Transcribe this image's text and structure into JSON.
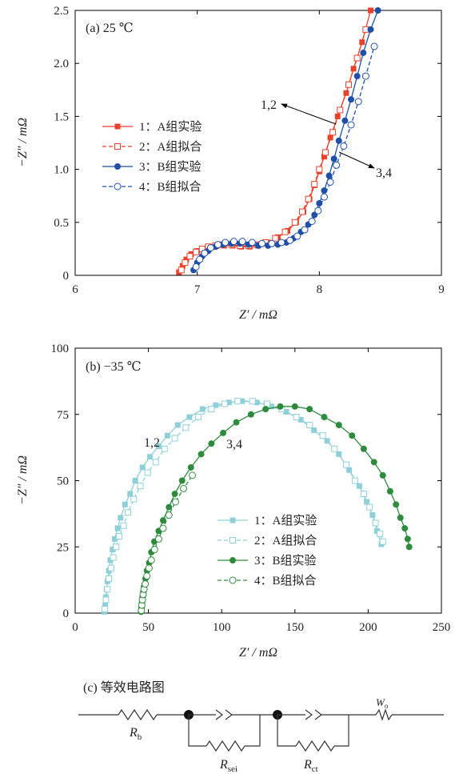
{
  "chart_data": [
    {
      "type": "line",
      "title": "(a) 25 ℃",
      "xlabel": "Z′ / mΩ",
      "ylabel": "−Z″ / mΩ",
      "xlim": [
        6,
        9
      ],
      "ylim": [
        0,
        2.5
      ],
      "xticks": [
        "6",
        "7",
        "8",
        "9"
      ],
      "yticks": [
        "0",
        "0.5",
        "1.0",
        "1.5",
        "2.0",
        "2.5"
      ],
      "legend_position": "middle-left",
      "annotations": [
        {
          "text": "1,2",
          "x": 7.55,
          "y": 1.6
        },
        {
          "text": "3,4",
          "x": 8.55,
          "y": 0.95
        }
      ],
      "colors": {
        "A": "#e8402a",
        "B": "#1f4fa6"
      },
      "series": [
        {
          "name": "1：A组实验",
          "marker": "filled-square",
          "line": "solid",
          "x": [
            6.85,
            6.88,
            6.91,
            6.95,
            7.0,
            7.05,
            7.1,
            7.16,
            7.22,
            7.29,
            7.36,
            7.43,
            7.5,
            7.58,
            7.66,
            7.74,
            7.81,
            7.87,
            7.92,
            7.96,
            8.0,
            8.04,
            8.09,
            8.15,
            8.22,
            8.28,
            8.35,
            8.42
          ],
          "y": [
            0.03,
            0.09,
            0.15,
            0.2,
            0.23,
            0.25,
            0.27,
            0.28,
            0.28,
            0.28,
            0.27,
            0.27,
            0.28,
            0.31,
            0.36,
            0.42,
            0.5,
            0.6,
            0.72,
            0.85,
            0.98,
            1.12,
            1.3,
            1.5,
            1.72,
            1.95,
            2.2,
            2.5
          ]
        },
        {
          "name": "2：A组拟合",
          "marker": "open-square",
          "line": "dashed",
          "x": [
            6.87,
            6.9,
            6.94,
            6.99,
            7.04,
            7.09,
            7.15,
            7.21,
            7.28,
            7.35,
            7.42,
            7.49,
            7.56,
            7.64,
            7.72,
            7.8,
            7.86,
            7.91,
            7.96,
            8.0,
            8.05,
            8.11,
            8.17,
            8.24,
            8.31,
            8.38
          ],
          "y": [
            0.05,
            0.12,
            0.18,
            0.22,
            0.25,
            0.27,
            0.28,
            0.29,
            0.29,
            0.28,
            0.28,
            0.29,
            0.31,
            0.35,
            0.41,
            0.5,
            0.6,
            0.72,
            0.86,
            1.0,
            1.16,
            1.35,
            1.56,
            1.8,
            2.05,
            2.32
          ]
        },
        {
          "name": "3：B组实验",
          "marker": "filled-circle",
          "line": "solid",
          "x": [
            6.97,
            7.0,
            7.04,
            7.09,
            7.15,
            7.21,
            7.28,
            7.35,
            7.42,
            7.5,
            7.58,
            7.66,
            7.73,
            7.79,
            7.85,
            7.91,
            7.96,
            8.0,
            8.04,
            8.08,
            8.12,
            8.16,
            8.21,
            8.26,
            8.31,
            8.36,
            8.42,
            8.48
          ],
          "y": [
            0.05,
            0.12,
            0.18,
            0.23,
            0.27,
            0.29,
            0.3,
            0.3,
            0.29,
            0.28,
            0.28,
            0.29,
            0.31,
            0.35,
            0.41,
            0.48,
            0.57,
            0.68,
            0.8,
            0.94,
            1.1,
            1.27,
            1.46,
            1.66,
            1.88,
            2.1,
            2.32,
            2.5
          ]
        },
        {
          "name": "4：B组拟合",
          "marker": "open-circle",
          "line": "dashed",
          "x": [
            6.99,
            7.02,
            7.06,
            7.11,
            7.17,
            7.23,
            7.3,
            7.37,
            7.45,
            7.53,
            7.61,
            7.69,
            7.76,
            7.82,
            7.88,
            7.94,
            7.99,
            8.04,
            8.09,
            8.14,
            8.2,
            8.26,
            8.32,
            8.38,
            8.45
          ],
          "y": [
            0.08,
            0.15,
            0.21,
            0.26,
            0.29,
            0.31,
            0.32,
            0.32,
            0.31,
            0.3,
            0.3,
            0.31,
            0.33,
            0.37,
            0.43,
            0.51,
            0.61,
            0.74,
            0.88,
            1.04,
            1.22,
            1.42,
            1.64,
            1.88,
            2.16
          ]
        }
      ]
    },
    {
      "type": "line",
      "title": "(b) −35 ℃",
      "xlabel": "Z′ / mΩ",
      "ylabel": "−Z″ / mΩ",
      "xlim": [
        0,
        250
      ],
      "ylim": [
        0,
        100
      ],
      "xticks": [
        "0",
        "50",
        "100",
        "150",
        "200",
        "250"
      ],
      "yticks": [
        "0",
        "25",
        "50",
        "75",
        "100"
      ],
      "legend_position": "bottom-right",
      "annotations": [
        {
          "text": "1,2",
          "x": 52,
          "y": 62
        },
        {
          "text": "3,4",
          "x": 85,
          "y": 60
        }
      ],
      "colors": {
        "A": "#8fd0d8",
        "B": "#2e8b3e"
      },
      "series": [
        {
          "name": "1：A组实验",
          "marker": "filled-square",
          "line": "solid",
          "x": [
            20,
            20.5,
            21,
            21.5,
            22,
            23,
            24,
            25.5,
            27,
            29,
            31,
            34,
            37.5,
            41,
            46,
            51,
            57,
            63,
            70,
            78,
            87,
            96,
            105,
            114,
            124,
            134,
            144,
            154,
            163,
            172,
            180,
            187,
            194,
            199,
            203,
            206,
            209
          ],
          "y": [
            0.5,
            3,
            6,
            9,
            12,
            16,
            20,
            24,
            28,
            32,
            36,
            41,
            45,
            50,
            55,
            59,
            63,
            67,
            71,
            74,
            77,
            78.5,
            79.5,
            80,
            79.5,
            78,
            76,
            73,
            69,
            65,
            60,
            54,
            48,
            42,
            37,
            31,
            26
          ]
        },
        {
          "name": "2：A组拟合",
          "marker": "open-square",
          "line": "dashed",
          "x": [
            20.3,
            21,
            22,
            23,
            24.5,
            26,
            28,
            30,
            33,
            36,
            40,
            44.5,
            49.5,
            55,
            61,
            68,
            75.5,
            84,
            93,
            102,
            111,
            121,
            131,
            141,
            151,
            160,
            169,
            177,
            185,
            191,
            197,
            201,
            205,
            208,
            210
          ],
          "y": [
            1.5,
            5,
            9,
            13,
            17,
            21,
            25,
            29,
            33,
            38,
            43,
            48,
            53,
            57,
            62,
            66,
            70,
            74,
            77,
            79,
            80,
            80,
            79,
            77,
            74,
            71,
            67,
            62,
            56,
            50,
            45,
            40,
            34,
            30,
            27
          ]
        },
        {
          "name": "3：B组实验",
          "marker": "filled-circle",
          "line": "solid",
          "x": [
            45,
            45.3,
            45.6,
            46,
            46.5,
            47,
            48,
            49,
            50.5,
            52,
            54,
            57,
            60,
            64,
            68,
            73,
            79,
            86,
            93,
            101,
            110,
            120,
            130,
            140,
            150,
            160,
            170,
            180,
            189,
            197,
            204,
            210,
            215,
            219,
            222,
            225,
            227,
            228
          ],
          "y": [
            0.5,
            2,
            4,
            6,
            8,
            10,
            13,
            16,
            19,
            23,
            27,
            31,
            35,
            40,
            45,
            50,
            55,
            60,
            64,
            68,
            72,
            75,
            77,
            78,
            78,
            77,
            74,
            71,
            67,
            62,
            57,
            52,
            46,
            41,
            36,
            32,
            28,
            25
          ]
        },
        {
          "name": "4：B组拟合",
          "marker": "open-circle",
          "line": "dashed",
          "x": [
            45.2,
            45.5,
            45.9,
            46.4,
            47,
            47.8,
            49,
            50.4,
            52,
            54.2,
            57,
            60,
            64,
            68.5,
            74,
            80
          ],
          "y": [
            1,
            3,
            5,
            7,
            9,
            11,
            14,
            17,
            20,
            24,
            28,
            32,
            37,
            42,
            47,
            52
          ]
        }
      ]
    }
  ],
  "circuit": {
    "title": "(c) 等效电路图",
    "labels": {
      "rb": "R",
      "rb_sub": "b",
      "rsei": "R",
      "rsei_sub": "sei",
      "rct": "R",
      "rct_sub": "ct",
      "wo": "W",
      "wo_sub": "o"
    }
  }
}
